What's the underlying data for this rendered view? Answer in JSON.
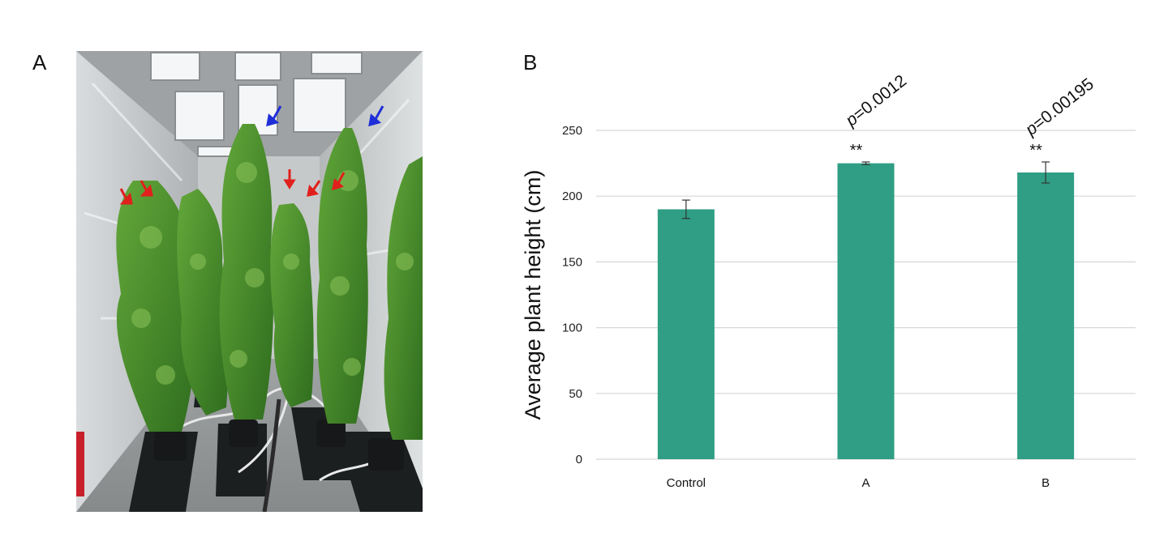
{
  "panels": {
    "a": "A",
    "b": "B"
  },
  "colors": {
    "bar": "#2f9e84",
    "grid": "#d6d6d6",
    "error": "#333333"
  },
  "photo": {
    "arrows_red": 5,
    "arrows_blue": 2
  },
  "chart_data": {
    "type": "bar",
    "ylabel": "Average plant height (cm)",
    "categories": [
      "Control",
      "A",
      "B"
    ],
    "values": [
      190,
      225,
      218
    ],
    "errors": [
      7,
      1,
      8
    ],
    "significance": [
      "",
      "**",
      "**"
    ],
    "pvalue_prefix": [
      "",
      "p",
      "p"
    ],
    "pvalue_rest": [
      "",
      "=0.0012",
      "=0.00195"
    ],
    "ylim": [
      0,
      250
    ],
    "yticks": [
      0,
      50,
      100,
      150,
      200,
      250
    ],
    "grid": true
  }
}
